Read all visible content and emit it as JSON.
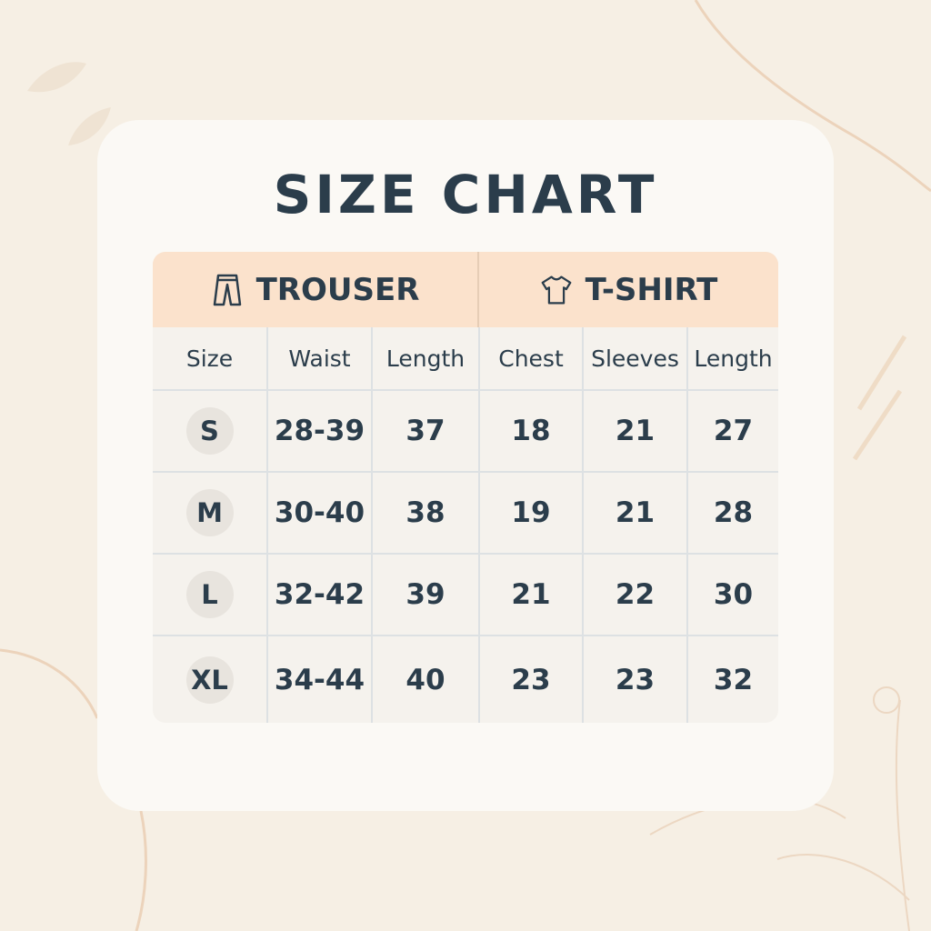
{
  "title": "SIZE CHART",
  "groups": [
    {
      "label": "TROUSER",
      "icon": "trouser-icon"
    },
    {
      "label": "T-SHIRT",
      "icon": "tshirt-icon"
    }
  ],
  "columns": [
    "Size",
    "Waist",
    "Length",
    "Chest",
    "Sleeves",
    "Length"
  ],
  "rows": [
    [
      "S",
      "28-39",
      "37",
      "18",
      "21",
      "27"
    ],
    [
      "M",
      "30-40",
      "38",
      "19",
      "21",
      "28"
    ],
    [
      "L",
      "32-42",
      "39",
      "21",
      "22",
      "30"
    ],
    [
      "XL",
      "34-44",
      "40",
      "23",
      "23",
      "32"
    ]
  ],
  "colors": {
    "header": "#fbe2cc",
    "text": "#2b3d4b",
    "background": "#f6efe4"
  }
}
